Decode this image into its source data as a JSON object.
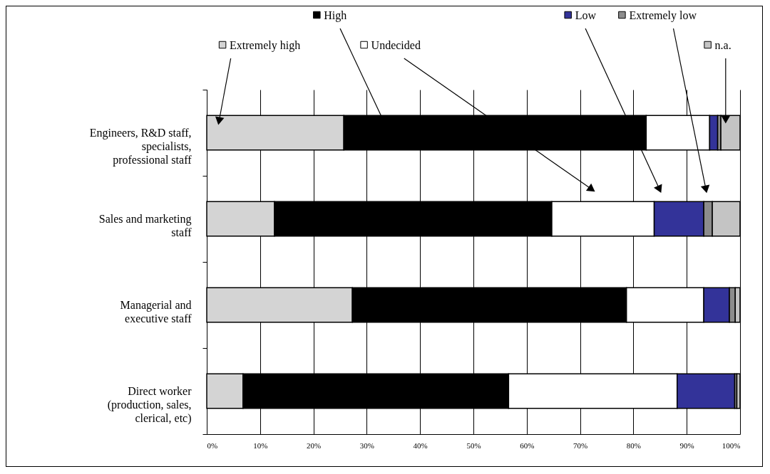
{
  "chart_data": {
    "type": "bar",
    "orientation": "horizontal",
    "stacked": true,
    "categories": [
      "Engineers, R&D staff, specialists, professional staff",
      "Sales and marketing staff",
      "Managerial and executive staff",
      "Direct worker (production, sales, clerical, etc)"
    ],
    "series": [
      {
        "name": "Extremely high",
        "color": "#d4d4d4",
        "values": [
          25.7,
          12.7,
          27.3,
          6.8
        ]
      },
      {
        "name": "High",
        "color": "#000000",
        "values": [
          56.7,
          52.0,
          51.4,
          49.8
        ]
      },
      {
        "name": "Undecided",
        "color": "#ffffff",
        "values": [
          11.9,
          19.2,
          14.5,
          31.6
        ]
      },
      {
        "name": "Low",
        "color": "#333399",
        "values": [
          1.5,
          9.3,
          4.8,
          10.8
        ]
      },
      {
        "name": "Extremely low",
        "color": "#8c8c8c",
        "values": [
          0.6,
          1.6,
          1.1,
          0.4
        ]
      },
      {
        "name": "n.a.",
        "color": "#c4c4c4",
        "values": [
          3.6,
          5.2,
          0.9,
          0.6
        ]
      }
    ],
    "xlim": [
      0,
      100
    ],
    "xticks": [
      {
        "value": 0,
        "label": "0%"
      },
      {
        "value": 10,
        "label": "10%"
      },
      {
        "value": 20,
        "label": "20%"
      },
      {
        "value": 30,
        "label": "30%"
      },
      {
        "value": 40,
        "label": "40%"
      },
      {
        "value": 50,
        "label": "50%"
      },
      {
        "value": 60,
        "label": "60%"
      },
      {
        "value": 70,
        "label": "70%"
      },
      {
        "value": 80,
        "label": "80%"
      },
      {
        "value": 90,
        "label": "90%"
      },
      {
        "value": 100,
        "label": "100%"
      }
    ],
    "grid": "x",
    "legend": "top"
  }
}
